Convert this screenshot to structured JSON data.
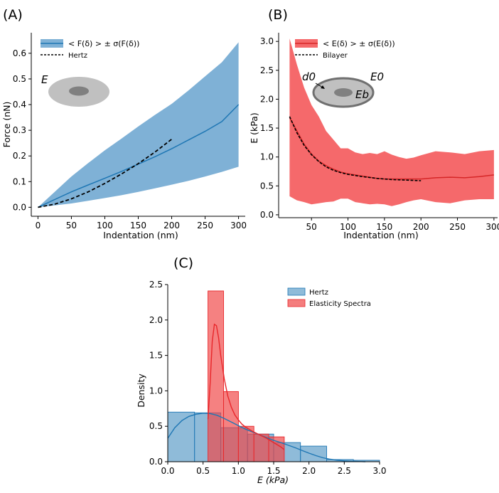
{
  "figure": {
    "panel_labels": [
      "(A)",
      "(B)",
      "(C)"
    ]
  },
  "chart_data": [
    {
      "panel": "(A)",
      "type": "line",
      "xlabel": "Indentation (nm)",
      "ylabel": "Force (nN)",
      "xlim": [
        -10,
        310
      ],
      "ylim": [
        -0.035,
        0.68
      ],
      "xticks": [
        0,
        50,
        100,
        150,
        200,
        250,
        300
      ],
      "yticks": [
        0.0,
        0.1,
        0.2,
        0.3,
        0.4,
        0.5,
        0.6
      ],
      "xtick_labels": [
        "0",
        "50",
        "100",
        "150",
        "200",
        "250",
        "300"
      ],
      "ytick_labels": [
        "0.0",
        "0.1",
        "0.2",
        "0.3",
        "0.4",
        "0.5",
        "0.6"
      ],
      "legend": [
        "< F(δ) > ± σ(F(δ))",
        "Hertz"
      ],
      "legend_position": "top-left",
      "inset_label": "E",
      "series": [
        {
          "kind": "mean",
          "color": "#1f77b4",
          "x": [
            0,
            25,
            50,
            75,
            100,
            125,
            150,
            175,
            200,
            225,
            250,
            275,
            300
          ],
          "y": [
            0.0,
            0.03,
            0.06,
            0.087,
            0.113,
            0.14,
            0.168,
            0.197,
            0.228,
            0.262,
            0.296,
            0.334,
            0.4
          ]
        },
        {
          "kind": "band",
          "color": "#7fb1d6",
          "x": [
            0,
            25,
            50,
            75,
            100,
            125,
            150,
            175,
            200,
            225,
            250,
            275,
            300
          ],
          "upper": [
            0.0,
            0.06,
            0.12,
            0.172,
            0.222,
            0.268,
            0.315,
            0.36,
            0.403,
            0.455,
            0.51,
            0.565,
            0.643
          ],
          "lower": [
            0.0,
            0.007,
            0.015,
            0.025,
            0.036,
            0.047,
            0.06,
            0.074,
            0.088,
            0.103,
            0.12,
            0.138,
            0.158
          ]
        },
        {
          "kind": "hertz",
          "color": "#000000",
          "x": [
            0,
            25,
            50,
            75,
            100,
            125,
            150,
            175,
            200
          ],
          "y": [
            0.0,
            0.012,
            0.033,
            0.06,
            0.093,
            0.13,
            0.17,
            0.215,
            0.265
          ]
        }
      ]
    },
    {
      "panel": "(B)",
      "type": "line",
      "xlabel": "Indentation (nm)",
      "ylabel": "E (kPa)",
      "xlim": [
        5,
        305
      ],
      "ylim": [
        -0.05,
        3.15
      ],
      "xticks": [
        50,
        100,
        150,
        200,
        250,
        300
      ],
      "yticks": [
        0.0,
        0.5,
        1.0,
        1.5,
        2.0,
        2.5,
        3.0
      ],
      "xtick_labels": [
        "50",
        "100",
        "150",
        "200",
        "250",
        "300"
      ],
      "ytick_labels": [
        "0.0",
        "0.5",
        "1.0",
        "1.5",
        "2.0",
        "2.5",
        "3.0"
      ],
      "legend": [
        "< E(δ) > ± σ(E(δ))",
        "Bilayer"
      ],
      "legend_position": "top-left",
      "inset_labels": [
        "d0",
        "E0",
        "Eb"
      ],
      "series": [
        {
          "kind": "mean",
          "color": "#d62728",
          "x": [
            20,
            30,
            40,
            50,
            60,
            70,
            80,
            90,
            100,
            110,
            120,
            130,
            140,
            150,
            160,
            170,
            180,
            190,
            200,
            220,
            240,
            260,
            280,
            300
          ],
          "y": [
            1.68,
            1.45,
            1.22,
            1.05,
            0.93,
            0.85,
            0.79,
            0.74,
            0.71,
            0.69,
            0.67,
            0.65,
            0.63,
            0.62,
            0.62,
            0.62,
            0.62,
            0.62,
            0.62,
            0.64,
            0.65,
            0.64,
            0.66,
            0.69
          ]
        },
        {
          "kind": "band",
          "color": "#f5696b",
          "x": [
            20,
            30,
            40,
            50,
            60,
            70,
            80,
            90,
            100,
            110,
            120,
            130,
            140,
            150,
            160,
            170,
            180,
            190,
            200,
            220,
            240,
            260,
            280,
            300
          ],
          "upper": [
            3.05,
            2.6,
            2.2,
            1.9,
            1.7,
            1.45,
            1.3,
            1.15,
            1.15,
            1.08,
            1.05,
            1.07,
            1.05,
            1.1,
            1.04,
            1.0,
            0.97,
            0.99,
            1.03,
            1.1,
            1.08,
            1.05,
            1.1,
            1.12
          ],
          "lower": [
            0.32,
            0.25,
            0.22,
            0.18,
            0.2,
            0.22,
            0.23,
            0.28,
            0.28,
            0.22,
            0.2,
            0.18,
            0.19,
            0.18,
            0.15,
            0.18,
            0.22,
            0.25,
            0.27,
            0.22,
            0.2,
            0.25,
            0.27,
            0.27
          ]
        },
        {
          "kind": "bilayer",
          "color": "#000000",
          "x": [
            20,
            30,
            40,
            50,
            60,
            70,
            80,
            90,
            100,
            120,
            140,
            160,
            180,
            200
          ],
          "y": [
            1.7,
            1.42,
            1.2,
            1.04,
            0.92,
            0.83,
            0.77,
            0.73,
            0.7,
            0.66,
            0.63,
            0.61,
            0.6,
            0.59
          ]
        }
      ]
    },
    {
      "panel": "(C)",
      "type": "bar",
      "xlabel": "E (kPa)",
      "ylabel": "Density",
      "xlim": [
        0.0,
        3.0
      ],
      "ylim": [
        0.0,
        2.5
      ],
      "xticks": [
        0.0,
        0.5,
        1.0,
        1.5,
        2.0,
        2.5,
        3.0
      ],
      "yticks": [
        0.0,
        0.5,
        1.0,
        1.5,
        2.0,
        2.5
      ],
      "xtick_labels": [
        "0.0",
        "0.5",
        "1.0",
        "1.5",
        "2.0",
        "2.5",
        "3.0"
      ],
      "ytick_labels": [
        "0.0",
        "0.5",
        "1.0",
        "1.5",
        "2.0",
        "2.5"
      ],
      "legend": [
        "Hertz",
        "Elasticity Spectra"
      ],
      "legend_position": "top-right",
      "series": [
        {
          "name": "Hertz",
          "color": "#1f77b4",
          "bin_edges": [
            0.0,
            0.38,
            0.75,
            1.13,
            1.5,
            1.88,
            2.25,
            2.63,
            3.0
          ],
          "values": [
            0.7,
            0.69,
            0.48,
            0.39,
            0.27,
            0.22,
            0.03,
            0.02
          ],
          "kde_x": [
            0.0,
            0.1,
            0.2,
            0.3,
            0.4,
            0.5,
            0.6,
            0.7,
            0.8,
            0.9,
            1.0,
            1.1,
            1.2,
            1.3,
            1.4,
            1.5,
            1.6,
            1.7,
            1.8,
            1.9,
            2.0,
            2.1,
            2.2,
            2.3,
            2.4,
            2.5,
            2.6,
            2.7,
            2.8
          ],
          "kde_y": [
            0.33,
            0.48,
            0.58,
            0.64,
            0.67,
            0.685,
            0.68,
            0.655,
            0.61,
            0.56,
            0.51,
            0.46,
            0.42,
            0.38,
            0.34,
            0.3,
            0.27,
            0.235,
            0.2,
            0.16,
            0.12,
            0.085,
            0.055,
            0.035,
            0.02,
            0.012,
            0.007,
            0.003,
            0.0
          ]
        },
        {
          "name": "Elasticity Spectra",
          "color": "#e8262a",
          "bin_edges": [
            0.57,
            0.79,
            1.0,
            1.22,
            1.43,
            1.65
          ],
          "values": [
            2.41,
            0.99,
            0.5,
            0.39,
            0.35
          ],
          "kde_x": [
            0.57,
            0.6,
            0.63,
            0.66,
            0.69,
            0.72,
            0.75,
            0.8,
            0.85,
            0.9,
            0.95,
            1.0,
            1.05,
            1.1,
            1.15,
            1.2,
            1.3,
            1.4,
            1.5,
            1.6,
            1.65
          ],
          "kde_y": [
            0.6,
            1.1,
            1.7,
            1.94,
            1.92,
            1.75,
            1.5,
            1.17,
            0.93,
            0.77,
            0.66,
            0.59,
            0.53,
            0.49,
            0.46,
            0.43,
            0.38,
            0.33,
            0.27,
            0.21,
            0.17
          ]
        }
      ]
    }
  ]
}
